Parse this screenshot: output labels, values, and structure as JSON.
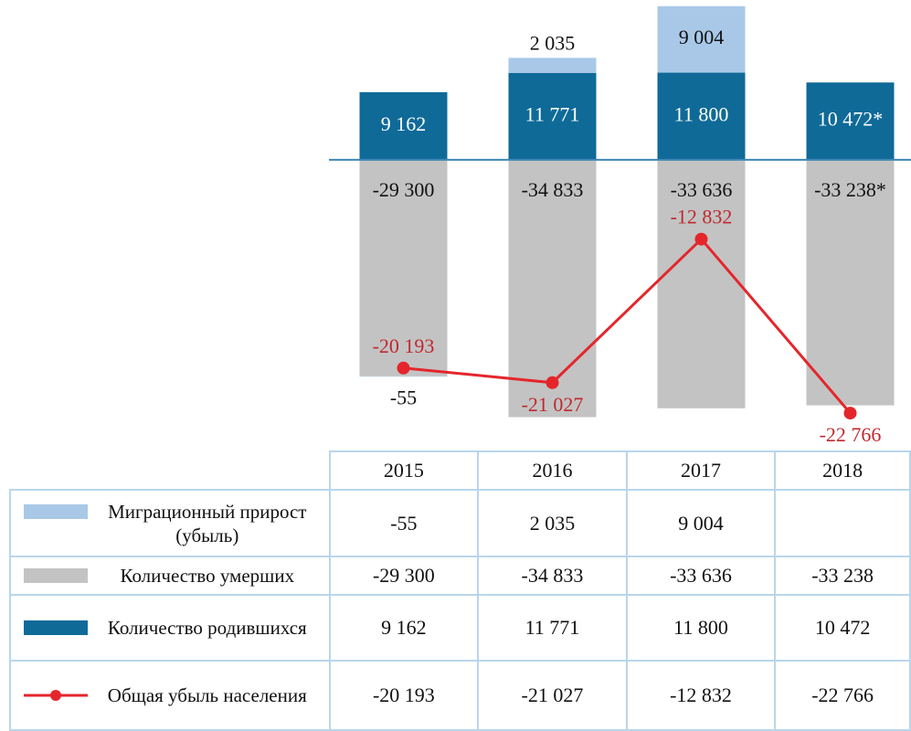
{
  "chart_data": {
    "type": "bar-line",
    "categories": [
      "2015",
      "2016",
      "2017",
      "2018"
    ],
    "ylim": [
      -36500,
      20400
    ],
    "y2lim": [
      -23700,
      300
    ],
    "series": [
      {
        "name": "Миграционный прирост (убыль)",
        "color": "#a9c8e8",
        "values": [
          -55,
          2035,
          9004,
          null
        ],
        "value_labels": [
          "-55",
          "2 035",
          "9 004",
          null
        ]
      },
      {
        "name": "Количество умерших",
        "color": "#c3c3c3",
        "values": [
          -29300,
          -34833,
          -33636,
          -33238
        ],
        "value_labels": [
          "-29 300",
          "-34 833",
          "-33 636",
          "-33 238*"
        ]
      },
      {
        "name": "Количество родившихся",
        "color": "#0f6a98",
        "values": [
          9162,
          11771,
          11800,
          10472
        ],
        "value_labels": [
          "9 162",
          "11 771",
          "11 800",
          "10 472*"
        ]
      },
      {
        "name": "Общая убыль населения",
        "color": "#e4262c",
        "axis": "y2",
        "values": [
          -20193,
          -21027,
          -12832,
          -22766
        ],
        "value_labels": [
          "-20 193",
          "-21 027",
          "-12 832",
          "-22 766"
        ]
      }
    ]
  },
  "table": {
    "rows": [
      [
        "-55",
        "2 035",
        "9 004",
        null
      ],
      [
        "-29 300",
        "-34 833",
        "-33 636",
        "-33 238"
      ],
      [
        "9 162",
        "11 771",
        "11 800",
        "10 472"
      ],
      [
        "-20 193",
        "-21 027",
        "-12 832",
        "-22 766"
      ]
    ]
  }
}
